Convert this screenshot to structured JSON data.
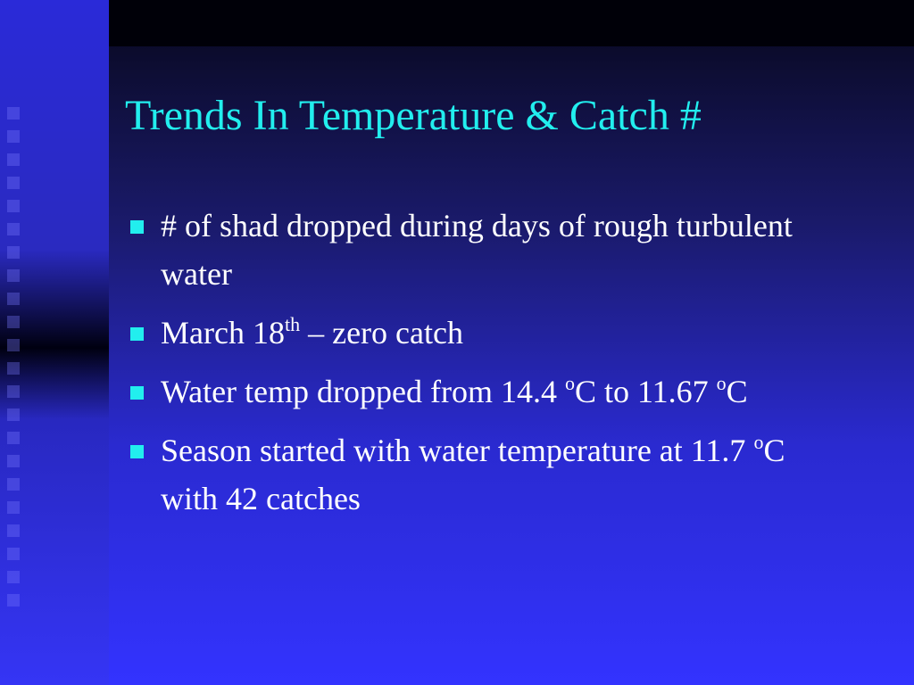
{
  "slide": {
    "title": "Trends In Temperature & Catch #",
    "bullets": [
      {
        "segments": [
          {
            "text": "# of shad dropped during days of rough turbulent water",
            "superscript": false
          }
        ]
      },
      {
        "segments": [
          {
            "text": "March 18",
            "superscript": false
          },
          {
            "text": "th",
            "superscript": true
          },
          {
            "text": " – zero catch",
            "superscript": false
          }
        ]
      },
      {
        "segments": [
          {
            "text": "Water temp dropped from 14.4 ",
            "superscript": false
          },
          {
            "text": "o",
            "superscript": true
          },
          {
            "text": "C to 11.67 ",
            "superscript": false
          },
          {
            "text": "o",
            "superscript": true
          },
          {
            "text": "C",
            "superscript": false
          }
        ]
      },
      {
        "segments": [
          {
            "text": "Season started with water temperature at 11.7 ",
            "superscript": false
          },
          {
            "text": "o",
            "superscript": true
          },
          {
            "text": "C with 42 catches",
            "superscript": false
          }
        ]
      }
    ]
  }
}
